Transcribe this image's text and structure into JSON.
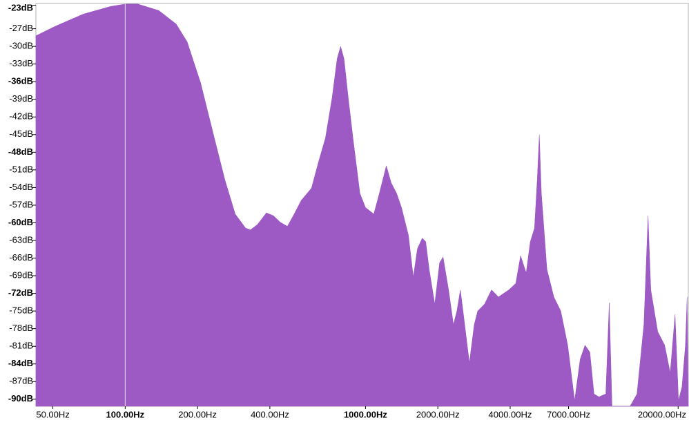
{
  "chart_data": {
    "type": "area",
    "color": "#9d5ac4",
    "log_x": true,
    "x": [
      42.5,
      51,
      67,
      87,
      100,
      113,
      138,
      163,
      181,
      206,
      235,
      260,
      287,
      317,
      332,
      355,
      387,
      414,
      442,
      473,
      505,
      540,
      596,
      637,
      681,
      727,
      762,
      788,
      814,
      847,
      887,
      948,
      1000,
      1083,
      1142,
      1221,
      1279,
      1348,
      1412,
      1509,
      1581,
      1645,
      1723,
      1781,
      1841,
      1942,
      2034,
      2103,
      2217,
      2323,
      2401,
      2482,
      2566,
      2706,
      2835,
      2931,
      3131,
      3345,
      3575,
      3950,
      4220,
      4420,
      4664,
      4852,
      5050,
      5185,
      5289,
      5395,
      5689,
      6079,
      6497,
      6942,
      7419,
      7824,
      8196,
      8584,
      8933,
      9359,
      10000,
      10337,
      10616,
      12618,
      13482,
      14407,
      14993,
      15395,
      16450,
      17579,
      18535,
      19420,
      20074,
      20750,
      21450,
      21800,
      22050
    ],
    "values": [
      -28.2,
      -26.6,
      -24.5,
      -23.2,
      -22.8,
      -22.8,
      -23.9,
      -26.2,
      -29.2,
      -36.2,
      -45.6,
      -52.7,
      -58.5,
      -60.9,
      -61.2,
      -60.3,
      -58.3,
      -58.8,
      -59.9,
      -60.6,
      -58.5,
      -56.2,
      -54.1,
      -49.7,
      -45.6,
      -38.6,
      -32.1,
      -30.0,
      -32.1,
      -38.6,
      -45.6,
      -55.0,
      -57.4,
      -58.5,
      -55.0,
      -50.3,
      -53.2,
      -55.0,
      -57.4,
      -62.1,
      -69.2,
      -64.4,
      -62.6,
      -63.2,
      -67.9,
      -73.8,
      -66.8,
      -65.8,
      -71.4,
      -77.3,
      -75.0,
      -71.4,
      -76.1,
      -83.8,
      -77.3,
      -75.0,
      -73.8,
      -71.4,
      -72.6,
      -71.4,
      -70.3,
      -65.6,
      -68.5,
      -63.2,
      -60.9,
      -52.7,
      -45.0,
      -55.0,
      -67.9,
      -72.6,
      -75.0,
      -80.8,
      -90.2,
      -83.2,
      -80.8,
      -82.0,
      -89.1,
      -89.6,
      -89.1,
      -73.6,
      -91.2,
      -91.2,
      -89.1,
      -77.3,
      -58.8,
      -71.4,
      -78.5,
      -80.8,
      -85.5,
      -75.6,
      -90.2,
      -87.9,
      -80.8,
      -72.6,
      -91.2
    ],
    "xlim": [
      42.5,
      22050
    ],
    "ylim": [
      -22.7,
      -91.2
    ],
    "xticks": [
      {
        "value": 50,
        "label": "50.00Hz"
      },
      {
        "value": 100,
        "label": "100.00Hz",
        "bold": true
      },
      {
        "value": 200,
        "label": "200.00Hz"
      },
      {
        "value": 400,
        "label": "400.00Hz"
      },
      {
        "value": 1000,
        "label": "1000.00Hz",
        "bold": true
      },
      {
        "value": 2000,
        "label": "2000.00Hz"
      },
      {
        "value": 4000,
        "label": "4000.00Hz"
      },
      {
        "value": 7000,
        "label": "7000.00Hz"
      },
      {
        "value": 20000,
        "label": "20000.00Hz"
      }
    ],
    "yticks": [
      {
        "value": -23,
        "label": "-23dB",
        "bold": true
      },
      {
        "value": -27,
        "label": "-27dB"
      },
      {
        "value": -30,
        "label": "-30dB"
      },
      {
        "value": -33,
        "label": "-33dB"
      },
      {
        "value": -36,
        "label": "-36dB",
        "bold": true
      },
      {
        "value": -39,
        "label": "-39dB"
      },
      {
        "value": -42,
        "label": "-42dB"
      },
      {
        "value": -45,
        "label": "-45dB"
      },
      {
        "value": -48,
        "label": "-48dB",
        "bold": true
      },
      {
        "value": -51,
        "label": "-51dB"
      },
      {
        "value": -54,
        "label": "-54dB"
      },
      {
        "value": -57,
        "label": "-57dB"
      },
      {
        "value": -60,
        "label": "-60dB",
        "bold": true
      },
      {
        "value": -63,
        "label": "-63dB"
      },
      {
        "value": -66,
        "label": "-66dB"
      },
      {
        "value": -69,
        "label": "-69dB"
      },
      {
        "value": -72,
        "label": "-72dB",
        "bold": true
      },
      {
        "value": -75,
        "label": "-75dB"
      },
      {
        "value": -78,
        "label": "-78dB"
      },
      {
        "value": -81,
        "label": "-81dB"
      },
      {
        "value": -84,
        "label": "-84dB",
        "bold": true
      },
      {
        "value": -87,
        "label": "-87dB"
      },
      {
        "value": -90,
        "label": "-90dB",
        "bold": true
      }
    ]
  }
}
